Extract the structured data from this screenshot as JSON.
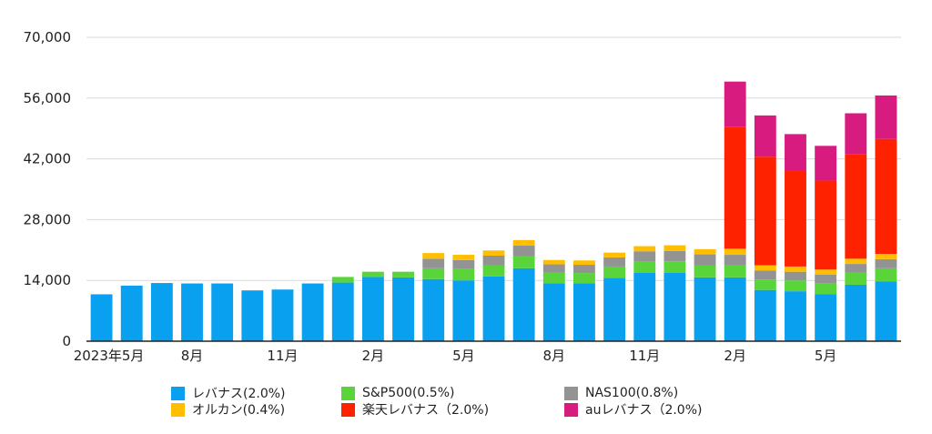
{
  "chart_data": {
    "type": "bar",
    "stacked": true,
    "categories": [
      "2023年5月",
      "",
      "",
      "8月",
      "",
      "",
      "11月",
      "",
      "",
      "2月",
      "",
      "",
      "5月",
      "",
      "",
      "8月",
      "",
      "",
      "11月",
      "",
      "",
      "2月",
      "",
      "",
      "5月",
      "",
      ""
    ],
    "y_ticks": [
      "0",
      "14,000",
      "28,000",
      "42,000",
      "56,000",
      "70,000"
    ],
    "ylim": [
      0,
      70000
    ],
    "grid": true,
    "legend_position": "bottom",
    "series": [
      {
        "name": "レバナス(2.0%)",
        "color": "#0aa0f0",
        "values": [
          10800,
          12800,
          13400,
          13300,
          13300,
          11700,
          11900,
          13300,
          13500,
          14800,
          14700,
          14300,
          14000,
          14900,
          16800,
          13300,
          13300,
          14600,
          15800,
          15800,
          14700,
          14700,
          11800,
          11500,
          10800,
          13000,
          13800
        ]
      },
      {
        "name": "S&P500(0.5%)",
        "color": "#5ad43b",
        "values": [
          0,
          0,
          0,
          0,
          0,
          0,
          0,
          0,
          1300,
          1200,
          1300,
          2500,
          2600,
          2600,
          2800,
          2500,
          2400,
          2600,
          2500,
          2600,
          2800,
          2900,
          2400,
          2500,
          2600,
          2800,
          3000
        ]
      },
      {
        "name": "NAS100(0.8%)",
        "color": "#939393",
        "values": [
          0,
          0,
          0,
          0,
          0,
          0,
          0,
          0,
          0,
          0,
          0,
          2200,
          2100,
          2200,
          2400,
          1900,
          1900,
          2100,
          2400,
          2400,
          2500,
          2300,
          2100,
          2000,
          1900,
          2000,
          2100
        ]
      },
      {
        "name": "オルカン(0.4%)",
        "color": "#ffbf00",
        "values": [
          0,
          0,
          0,
          0,
          0,
          0,
          0,
          0,
          0,
          0,
          0,
          1300,
          1200,
          1200,
          1300,
          1000,
          1000,
          1100,
          1200,
          1300,
          1200,
          1400,
          1200,
          1200,
          1200,
          1200,
          1200
        ]
      },
      {
        "name": "楽天レバナス（2.0%)",
        "color": "#ff2200",
        "values": [
          0,
          0,
          0,
          0,
          0,
          0,
          0,
          0,
          0,
          0,
          0,
          0,
          0,
          0,
          0,
          0,
          0,
          0,
          0,
          0,
          0,
          28000,
          25000,
          22000,
          20500,
          24000,
          26500
        ]
      },
      {
        "name": "auレバナス（2.0%)",
        "color": "#d81b7f",
        "values": [
          0,
          0,
          0,
          0,
          0,
          0,
          0,
          0,
          0,
          0,
          0,
          0,
          0,
          0,
          0,
          0,
          0,
          0,
          0,
          0,
          0,
          10500,
          9500,
          8500,
          8000,
          9500,
          10000
        ]
      }
    ]
  }
}
